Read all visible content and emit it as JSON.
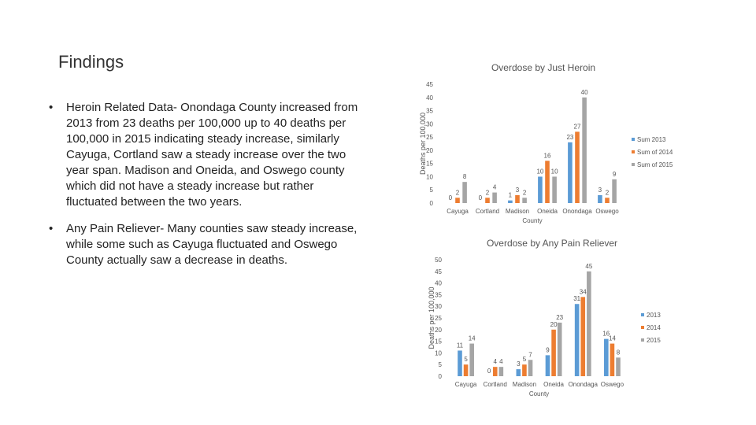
{
  "slide": {
    "title": "Findings",
    "bullets": [
      "Heroin Related Data- Onondaga County increased from 2013 from 23 deaths per 100,000 up to 40 deaths per 100,000 in 2015 indicating steady increase, similarly Cayuga, Cortland saw a steady increase over the two year span. Madison and Oneida, and Oswego county which did not have a steady increase but rather fluctuated between the two years.",
      "Any Pain Reliever- Many counties saw steady increase, while some such as Cayuga fluctuated and Oswego County actually saw a decrease in deaths."
    ]
  },
  "colors": {
    "c2013": "#5B9BD5",
    "c2014": "#ED7D31",
    "c2015": "#A5A5A5"
  },
  "chart_data": [
    {
      "type": "bar",
      "title": "Overdose by Just Heroin",
      "xlabel": "County",
      "ylabel": "Deaths per 100,000",
      "ylim": [
        0,
        45
      ],
      "yticks": [
        0,
        5,
        10,
        15,
        20,
        25,
        30,
        35,
        40,
        45
      ],
      "categories": [
        "Cayuga",
        "Cortland",
        "Madison",
        "Oneida",
        "Onondaga",
        "Oswego"
      ],
      "series": [
        {
          "name": "Sum 2013",
          "values": [
            0,
            0,
            1,
            10,
            23,
            3
          ]
        },
        {
          "name": "Sum of 2014",
          "values": [
            2,
            2,
            3,
            16,
            27,
            2
          ]
        },
        {
          "name": "Sum of 2015",
          "values": [
            8,
            4,
            2,
            10,
            40,
            9
          ]
        }
      ],
      "legend": "right"
    },
    {
      "type": "bar",
      "title": "Overdose by Any Pain Reliever",
      "xlabel": "County",
      "ylabel": "Deaths per 100,000",
      "ylim": [
        0,
        50
      ],
      "yticks": [
        0,
        5,
        10,
        15,
        20,
        25,
        30,
        35,
        40,
        45,
        50
      ],
      "categories": [
        "Cayuga",
        "Cortland",
        "Madison",
        "Oneida",
        "Onondaga",
        "Oswego"
      ],
      "series": [
        {
          "name": "2013",
          "values": [
            11,
            0,
            3,
            9,
            31,
            16
          ]
        },
        {
          "name": "2014",
          "values": [
            5,
            4,
            5,
            20,
            34,
            14
          ]
        },
        {
          "name": "2015",
          "values": [
            14,
            4,
            7,
            23,
            45,
            8
          ]
        }
      ],
      "legend": "right"
    }
  ]
}
